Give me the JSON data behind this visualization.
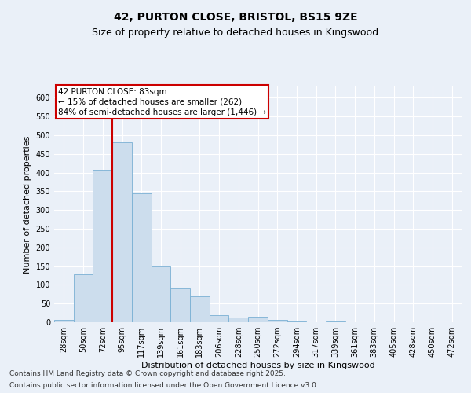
{
  "title_line1": "42, PURTON CLOSE, BRISTOL, BS15 9ZE",
  "title_line2": "Size of property relative to detached houses in Kingswood",
  "xlabel": "Distribution of detached houses by size in Kingswood",
  "ylabel": "Number of detached properties",
  "bar_values": [
    7,
    128,
    408,
    481,
    344,
    150,
    91,
    70,
    18,
    13,
    15,
    6,
    2,
    0,
    2,
    0,
    0,
    1,
    0,
    0,
    0
  ],
  "bar_labels": [
    "28sqm",
    "50sqm",
    "72sqm",
    "95sqm",
    "117sqm",
    "139sqm",
    "161sqm",
    "183sqm",
    "206sqm",
    "228sqm",
    "250sqm",
    "272sqm",
    "294sqm",
    "317sqm",
    "339sqm",
    "361sqm",
    "383sqm",
    "405sqm",
    "428sqm",
    "450sqm",
    "472sqm"
  ],
  "bar_color": "#ccdded",
  "bar_edge_color": "#7ab0d4",
  "background_color": "#eaf0f8",
  "grid_color": "#ffffff",
  "vline_color": "#cc0000",
  "vline_x": 2.5,
  "annotation_text": "42 PURTON CLOSE: 83sqm\n← 15% of detached houses are smaller (262)\n84% of semi-detached houses are larger (1,446) →",
  "annotation_box_edgecolor": "#cc0000",
  "ylim": [
    0,
    630
  ],
  "yticks": [
    0,
    50,
    100,
    150,
    200,
    250,
    300,
    350,
    400,
    450,
    500,
    550,
    600
  ],
  "footnote1": "Contains HM Land Registry data © Crown copyright and database right 2025.",
  "footnote2": "Contains public sector information licensed under the Open Government Licence v3.0.",
  "title_fontsize": 10,
  "subtitle_fontsize": 9,
  "axis_label_fontsize": 8,
  "tick_fontsize": 7,
  "annotation_fontsize": 7.5,
  "footnote_fontsize": 6.5
}
